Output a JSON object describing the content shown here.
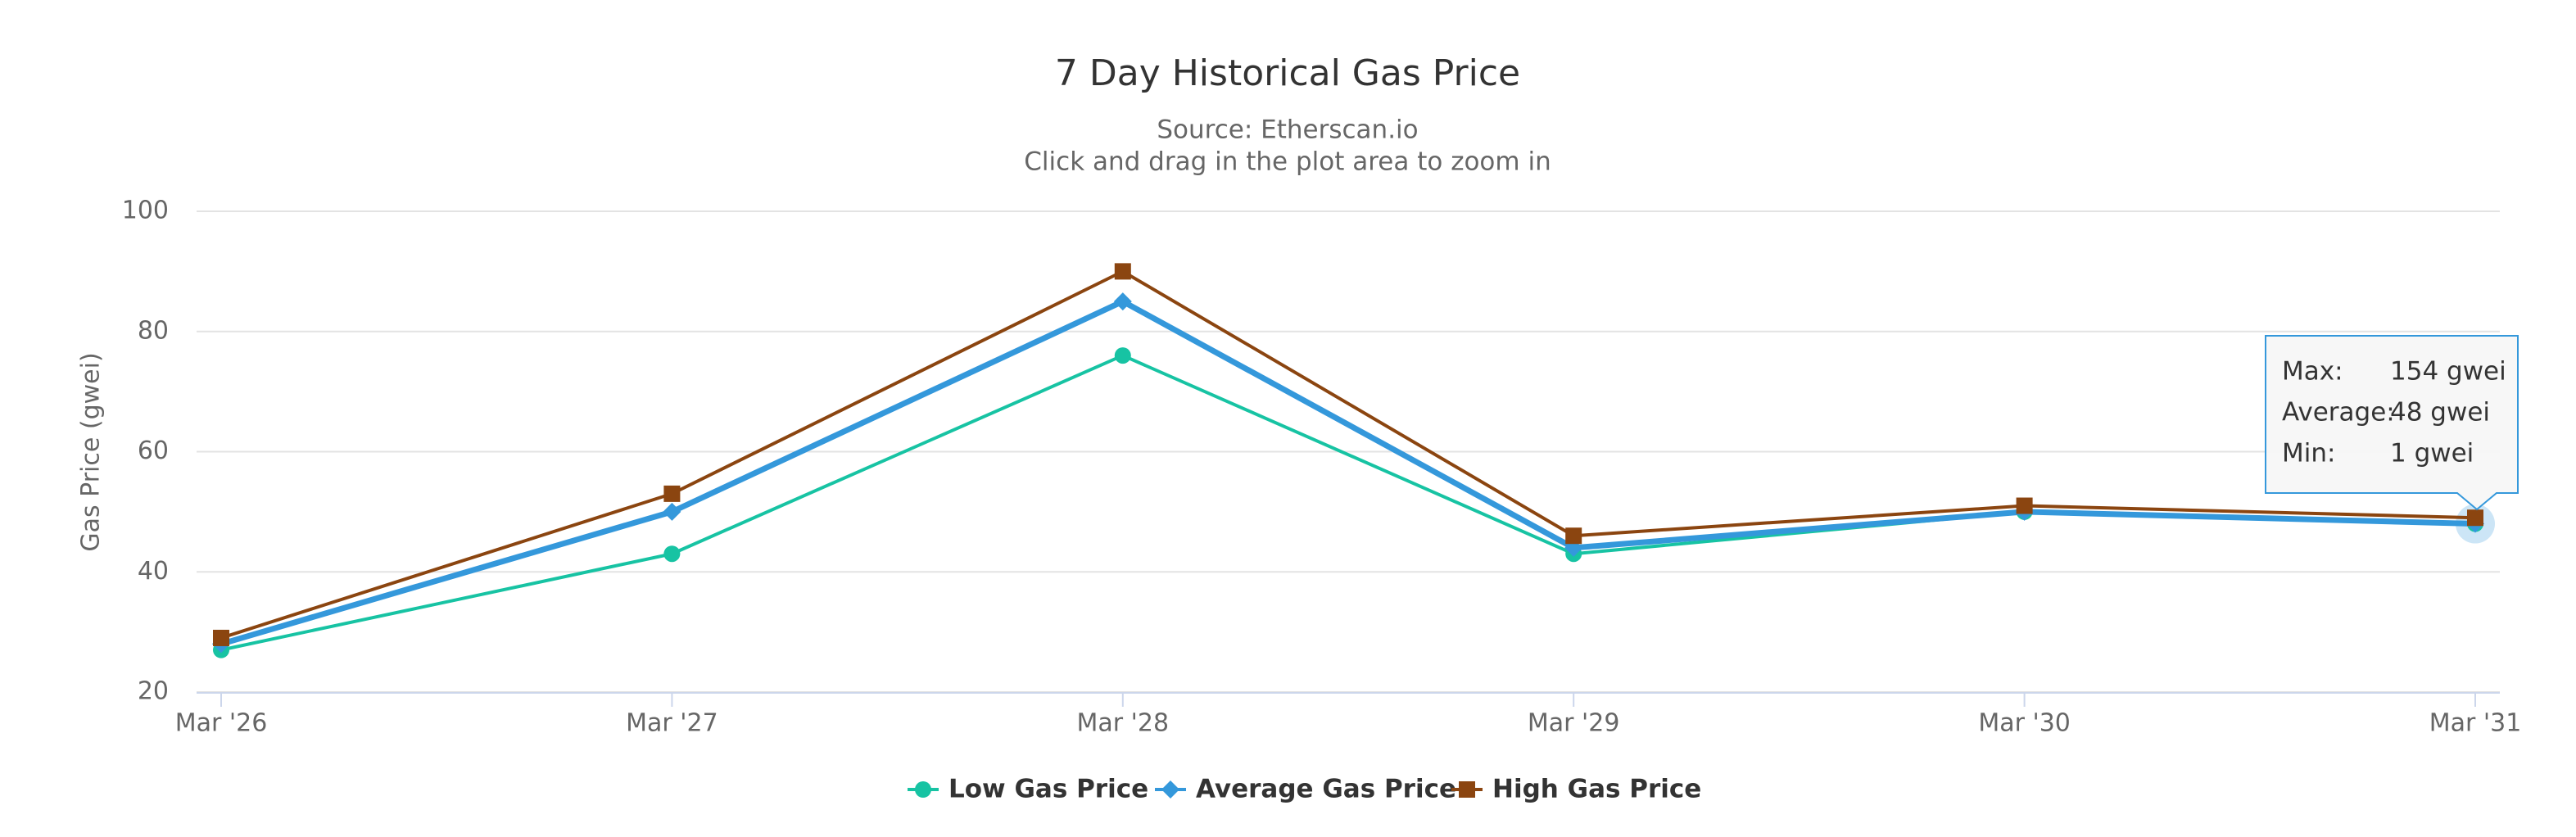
{
  "chart_data": {
    "type": "line",
    "title": "7 Day Historical Gas Price",
    "subtitle": "Source: Etherscan.io",
    "subtitle2": "Click and drag in the plot area to zoom in",
    "y_label": "Gas Price (gwei)",
    "categories": [
      "Mar '26",
      "Mar '27",
      "Mar '28",
      "Mar '29",
      "Mar '30",
      "Mar '31"
    ],
    "series": [
      {
        "name": "Low Gas Price",
        "color": "#17c3a3",
        "marker": "circle",
        "values": [
          27,
          43,
          76,
          43,
          50,
          48
        ]
      },
      {
        "name": "Average Gas Price",
        "color": "#3498db",
        "marker": "diamond",
        "values": [
          28,
          50,
          85,
          44,
          50,
          48
        ]
      },
      {
        "name": "High Gas Price",
        "color": "#8b4510",
        "marker": "square",
        "values": [
          29,
          53,
          90,
          46,
          51,
          49
        ]
      }
    ],
    "ylim": [
      20,
      100
    ],
    "yticks": [
      20,
      40,
      60,
      80,
      100
    ],
    "grid": true,
    "tooltip": {
      "rows": [
        {
          "label": "Max:",
          "value": "154 gwei"
        },
        {
          "label": "Average:",
          "value": "48 gwei"
        },
        {
          "label": "Min:",
          "value": "1 gwei"
        }
      ]
    }
  }
}
